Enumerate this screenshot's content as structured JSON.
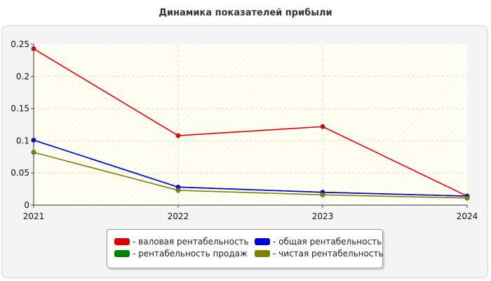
{
  "chart_data": {
    "type": "line",
    "title": "Динамика показателей прибыли",
    "xlabel": "",
    "ylabel": "",
    "categories": [
      "2021",
      "2022",
      "2023",
      "2024"
    ],
    "ylim": [
      0,
      0.25
    ],
    "yticks": [
      "0",
      "0.05",
      "0.1",
      "0.15",
      "0.2",
      "0.25"
    ],
    "grid": true,
    "legend_position": "bottom",
    "series": [
      {
        "name": "- валовая рентабельность",
        "color": "#e00000",
        "values": [
          0.243,
          0.108,
          0.122,
          0.014
        ]
      },
      {
        "name": "- рентабельность продаж",
        "color": "#008000",
        "values": [
          0.101,
          0.028,
          0.02,
          0.014
        ]
      },
      {
        "name": "- общая рентабельность",
        "color": "#0000e0",
        "values": [
          0.101,
          0.028,
          0.02,
          0.014
        ]
      },
      {
        "name": "- чистая рентабельность",
        "color": "#808000",
        "values": [
          0.082,
          0.023,
          0.016,
          0.011
        ]
      }
    ]
  }
}
